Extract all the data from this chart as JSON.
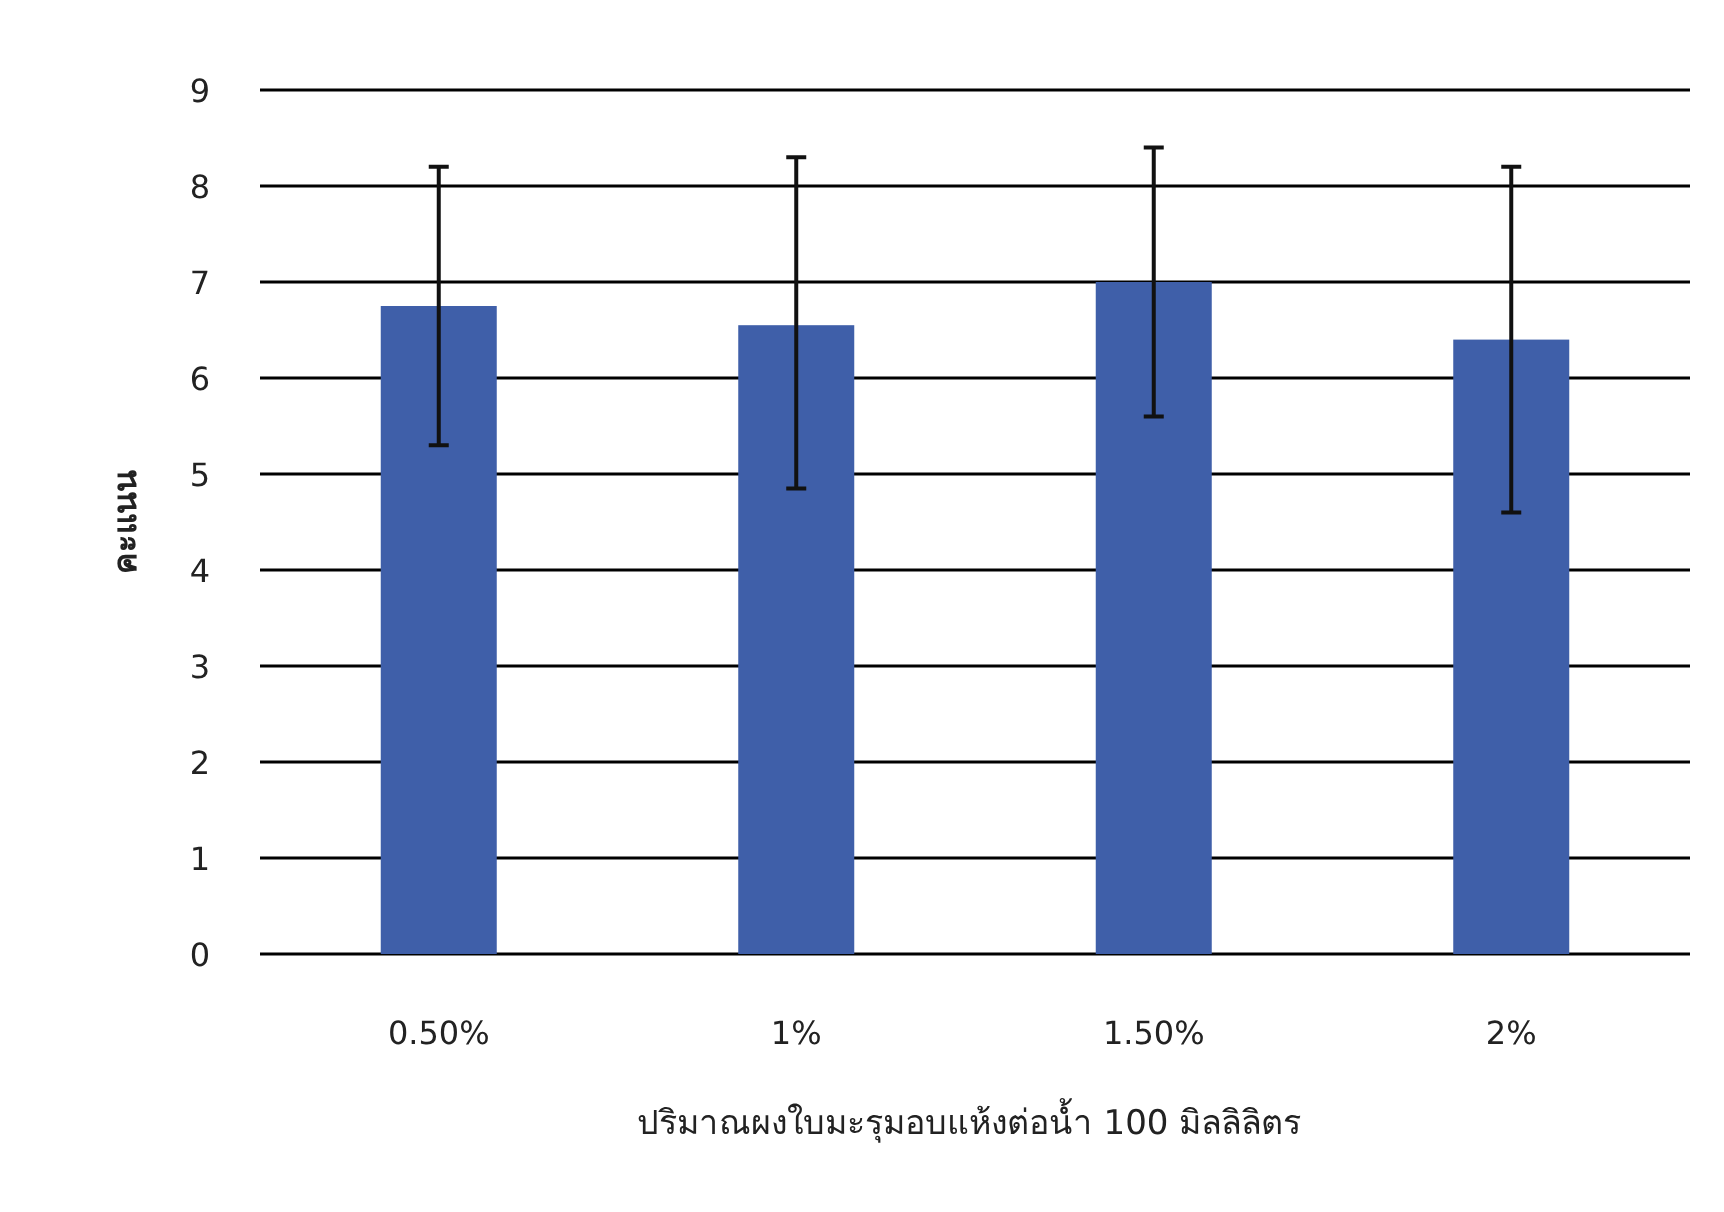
{
  "chart_data": {
    "type": "bar",
    "xlabel": "ปริมาณผงใบมะรุมอบแห้งต่อน้ำ 100 มิลลิลิตร",
    "ylabel": "คะแนน",
    "categories": [
      "0.50%",
      "1%",
      "1.50%",
      "2%"
    ],
    "values": [
      6.75,
      6.55,
      7.0,
      6.4
    ],
    "errors": [
      [
        5.3,
        8.2
      ],
      [
        4.85,
        8.3
      ],
      [
        5.6,
        8.4
      ],
      [
        4.6,
        8.2
      ]
    ],
    "color": "#3f5fa9",
    "ylim": [
      0,
      9
    ],
    "yticks": [
      0,
      1,
      2,
      3,
      4,
      5,
      6,
      7,
      8,
      9
    ],
    "grid": "y"
  }
}
